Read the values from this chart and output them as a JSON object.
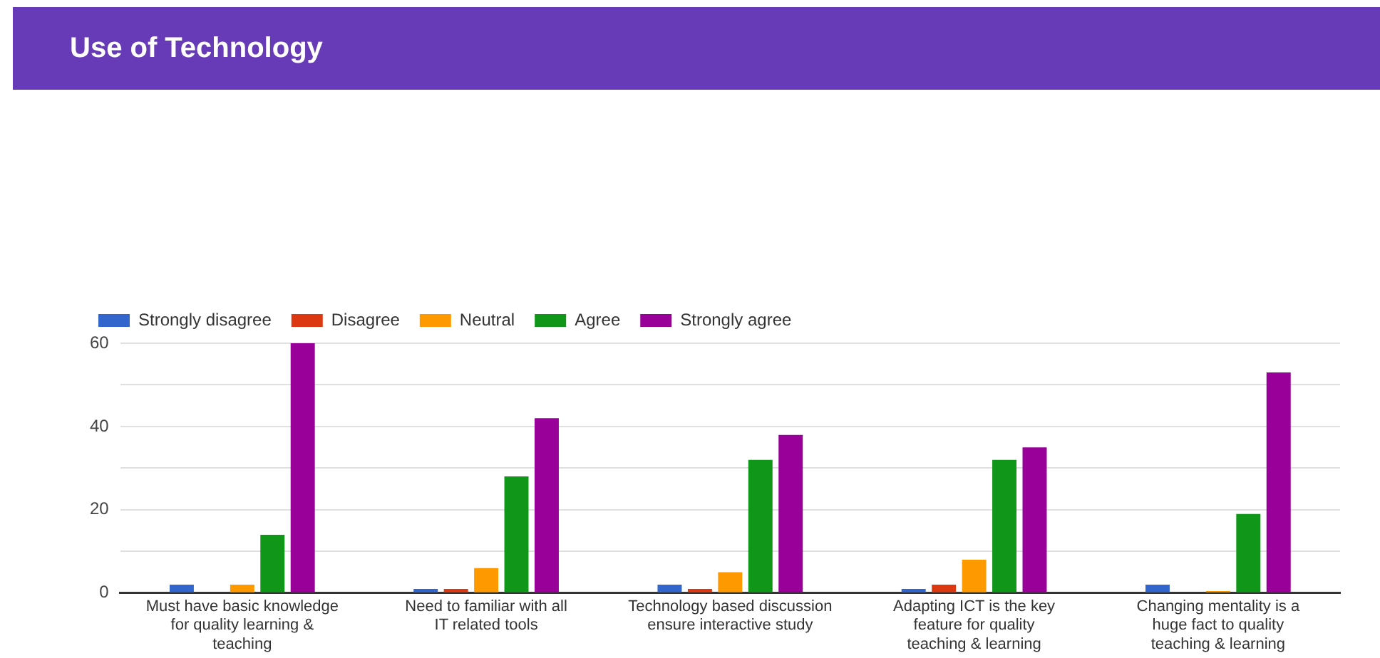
{
  "chart_data": {
    "type": "bar",
    "title": "Use of Technology",
    "categories": [
      "Must have basic knowledge for quality learning & teaching",
      "Need to familiar with all IT related tools",
      "Technology based discussion ensure interactive study",
      "Adapting ICT is the key feature for quality teaching & learning",
      "Changing mentality is a huge fact to quality teaching & learning"
    ],
    "series": [
      {
        "name": "Strongly disagree",
        "color": "#3366cc",
        "values": [
          2,
          1,
          2,
          1,
          2
        ]
      },
      {
        "name": "Disagree",
        "color": "#dc3912",
        "values": [
          0,
          1,
          1,
          2,
          0
        ]
      },
      {
        "name": "Neutral",
        "color": "#ff9900",
        "values": [
          2,
          6,
          5,
          8,
          0.5
        ]
      },
      {
        "name": "Agree",
        "color": "#109618",
        "values": [
          14,
          28,
          32,
          32,
          19
        ]
      },
      {
        "name": "Strongly agree",
        "color": "#990099",
        "values": [
          60,
          42,
          38,
          35,
          53
        ]
      }
    ],
    "ylim": [
      0,
      60
    ],
    "yticks": [
      0,
      {
        "value": 10,
        "label": null
      },
      20,
      {
        "value": 30,
        "label": null
      },
      40,
      {
        "value": 50,
        "label": null
      },
      60
    ],
    "grid": "y",
    "legend": "top left"
  }
}
